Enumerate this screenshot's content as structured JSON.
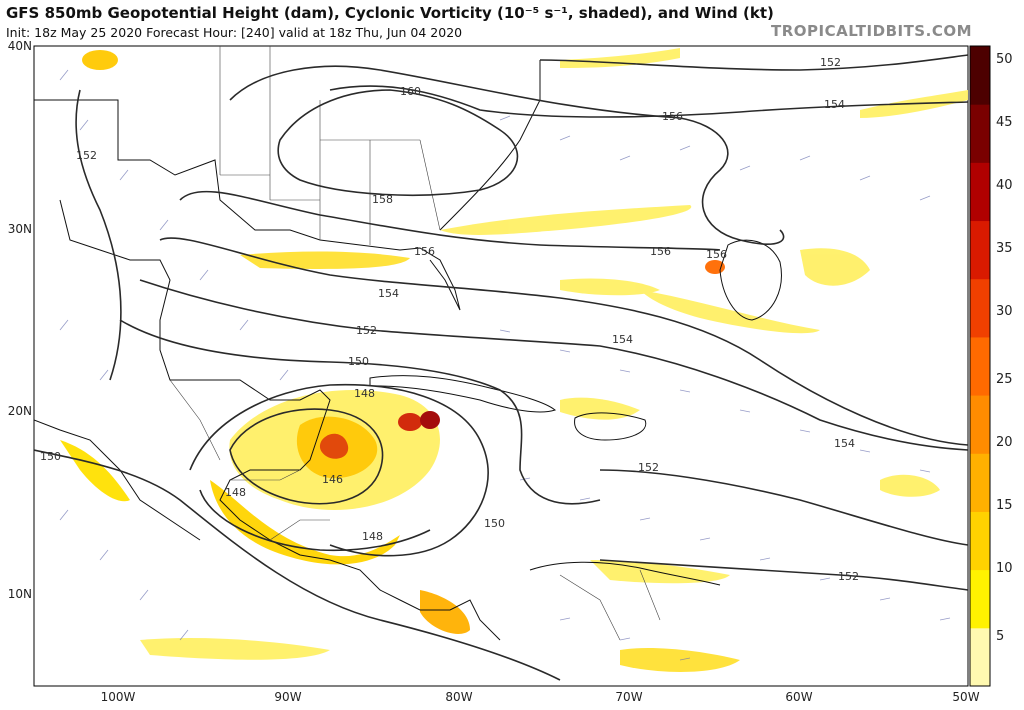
{
  "header": {
    "title": "GFS 850mb Geopotential Height (dam), Cyclonic Vorticity (10⁻⁵ s⁻¹, shaded), and Wind (kt)",
    "subtitle": "Init: 18z May 25 2020   Forecast Hour: [240]   valid at 18z Thu, Jun 04 2020",
    "brand": "TROPICALTIDBITS.COM"
  },
  "map": {
    "lat_labels": [
      "40N",
      "30N",
      "20N",
      "10N"
    ],
    "lon_labels": [
      "100W",
      "90W",
      "80W",
      "70W",
      "60W",
      "50W"
    ],
    "contour_labels": [
      "152",
      "160",
      "156",
      "154",
      "158",
      "156",
      "156",
      "156",
      "154",
      "152",
      "154",
      "150",
      "148",
      "146",
      "148",
      "150",
      "148",
      "152",
      "154",
      "150",
      "152",
      "152"
    ]
  },
  "colorbar": {
    "ticks": [
      "50",
      "45",
      "40",
      "35",
      "30",
      "25",
      "20",
      "15",
      "10",
      "5"
    ],
    "colors": [
      "#fff9b0",
      "#fff200",
      "#ffd200",
      "#ffb000",
      "#ff8c00",
      "#ff6a00",
      "#f04000",
      "#d91a00",
      "#b00000",
      "#7a0000",
      "#4d0000"
    ]
  }
}
